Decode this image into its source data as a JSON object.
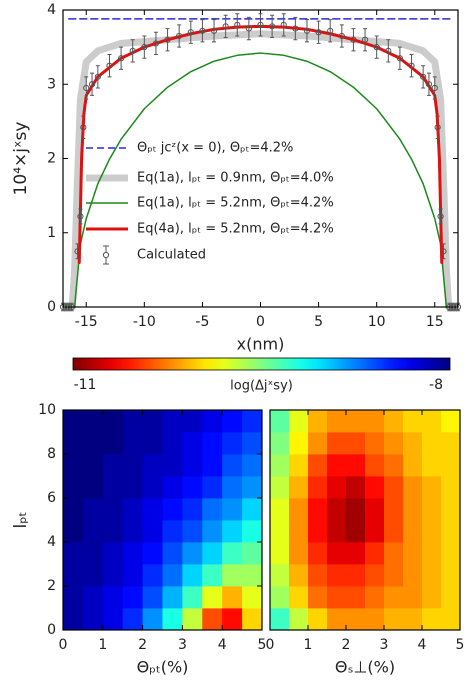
{
  "chart_data": [
    {
      "type": "line",
      "xlabel": "x(nm)",
      "ylabel": "10⁴×jˣsy",
      "xlim": [
        -17,
        17
      ],
      "ylim": [
        0,
        4
      ],
      "xticks": [
        -15,
        -10,
        -5,
        0,
        5,
        10,
        15
      ],
      "yticks": [
        0,
        1,
        2,
        3,
        4
      ],
      "series": [
        {
          "name": "Θₚₜ jcᶻ(x = 0),      Θₚₜ=4.2%",
          "color": "#2a2ad8",
          "dashed": true,
          "x": [
            -16.5,
            16.5
          ],
          "values": [
            3.88,
            3.88
          ]
        },
        {
          "name": "Eq(1a), lₚₜ = 0.9nm, Θₚₜ=4.0%",
          "color": "#cccccc",
          "x": [
            -16.2,
            -16,
            -15.8,
            -15.5,
            -15,
            -14,
            -12,
            -8,
            -4,
            0,
            4,
            8,
            12,
            14,
            15,
            15.5,
            15.8,
            16,
            16.2
          ],
          "values": [
            0,
            0.5,
            1.5,
            2.8,
            3.3,
            3.45,
            3.55,
            3.6,
            3.65,
            3.68,
            3.65,
            3.6,
            3.55,
            3.45,
            3.3,
            2.8,
            1.5,
            0.5,
            0
          ]
        },
        {
          "name": "Eq(1a), lₚₜ = 5.2nm, Θₚₜ=4.2%",
          "color": "#1a8a1a",
          "x": [
            -16,
            -15.5,
            -15,
            -14,
            -13,
            -12,
            -10,
            -8,
            -6,
            -4,
            -2,
            0,
            2,
            4,
            6,
            8,
            10,
            12,
            13,
            14,
            15,
            15.5,
            16
          ],
          "values": [
            0,
            0.85,
            1.19,
            1.66,
            1.99,
            2.26,
            2.67,
            2.96,
            3.17,
            3.31,
            3.39,
            3.42,
            3.39,
            3.31,
            3.17,
            2.96,
            2.67,
            2.26,
            1.99,
            1.66,
            1.19,
            0.85,
            0
          ]
        },
        {
          "name": "Eq(4a), lₚₜ = 5.2nm, Θₚₜ=4.2%",
          "color": "#e01010",
          "x": [
            -15.6,
            -15.4,
            -15.2,
            -15,
            -14,
            -12,
            -10,
            -8,
            -6,
            -4,
            -2,
            0,
            2,
            4,
            6,
            8,
            10,
            12,
            14,
            15,
            15.2,
            15.4,
            15.6
          ],
          "values": [
            0.6,
            2.0,
            2.6,
            2.85,
            3.1,
            3.35,
            3.5,
            3.6,
            3.68,
            3.74,
            3.77,
            3.78,
            3.77,
            3.74,
            3.68,
            3.6,
            3.5,
            3.35,
            3.1,
            2.85,
            2.6,
            2.0,
            0.6
          ]
        },
        {
          "name": "Calculated",
          "color": "#555555",
          "x": [
            -17,
            -16.75,
            -16.5,
            -16.25,
            -15.75,
            -15.5,
            -15.25,
            -15,
            -14.5,
            -14,
            -13,
            -12,
            -11,
            -10,
            -9,
            -8,
            -7,
            -6,
            -5,
            -4,
            -3,
            -2,
            -1,
            0,
            1,
            2,
            3,
            4,
            5,
            6,
            7,
            8,
            9,
            10,
            11,
            12,
            13,
            14,
            14.5,
            15,
            15.25,
            15.5,
            15.75,
            16.25,
            16.5,
            16.75,
            17
          ],
          "values": [
            0,
            0,
            0,
            0,
            0.75,
            1.22,
            2.42,
            2.95,
            3.0,
            3.1,
            3.25,
            3.35,
            3.45,
            3.5,
            3.55,
            3.6,
            3.65,
            3.7,
            3.72,
            3.72,
            3.78,
            3.8,
            3.75,
            3.8,
            3.78,
            3.8,
            3.75,
            3.72,
            3.7,
            3.72,
            3.65,
            3.6,
            3.6,
            3.5,
            3.45,
            3.35,
            3.25,
            3.1,
            3.0,
            2.95,
            2.42,
            1.22,
            0.75,
            0,
            0,
            0,
            0
          ],
          "errors": [
            0.05,
            0.05,
            0.05,
            0.05,
            0.1,
            0.1,
            0.15,
            0.15,
            0.15,
            0.15,
            0.15,
            0.15,
            0.15,
            0.15,
            0.15,
            0.15,
            0.15,
            0.15,
            0.15,
            0.15,
            0.15,
            0.15,
            0.15,
            0.15,
            0.15,
            0.15,
            0.15,
            0.15,
            0.15,
            0.15,
            0.15,
            0.15,
            0.15,
            0.15,
            0.15,
            0.15,
            0.15,
            0.15,
            0.15,
            0.15,
            0.15,
            0.1,
            0.1,
            0.05,
            0.05,
            0.05,
            0.05
          ]
        }
      ]
    },
    {
      "type": "colorbar",
      "label": "log(Δjˣsy)",
      "zlim": [
        -11,
        -8
      ],
      "zticks": [
        -11,
        -8
      ]
    },
    {
      "type": "heatmap",
      "xlabel": "Θₚₜ(%)",
      "ylabel": "lₚₜ",
      "xlim": [
        0,
        5
      ],
      "ylim": [
        0,
        10
      ],
      "xticks": [
        0,
        1,
        2,
        3,
        4,
        5
      ],
      "yticks": [
        0,
        2,
        4,
        6,
        8,
        10
      ],
      "x": [
        0.25,
        0.75,
        1.25,
        1.75,
        2.25,
        2.75,
        3.25,
        3.75,
        4.25,
        4.75
      ],
      "y": [
        0.5,
        1.5,
        2.5,
        3.5,
        4.5,
        5.5,
        6.5,
        7.5,
        8.5,
        9.5
      ],
      "z": [
        [
          -8.1,
          -8.2,
          -8.3,
          -8.5,
          -8.8,
          -9.2,
          -9.7,
          -10.4,
          -10.6,
          -10.0
        ],
        [
          -8.1,
          -8.2,
          -8.3,
          -8.4,
          -8.6,
          -8.9,
          -9.3,
          -9.8,
          -10.1,
          -9.8
        ],
        [
          -8.1,
          -8.1,
          -8.2,
          -8.3,
          -8.5,
          -8.7,
          -9.0,
          -9.3,
          -9.6,
          -9.6
        ],
        [
          -8.1,
          -8.1,
          -8.2,
          -8.3,
          -8.4,
          -8.6,
          -8.8,
          -9.0,
          -9.3,
          -9.4
        ],
        [
          -8.0,
          -8.1,
          -8.1,
          -8.2,
          -8.3,
          -8.5,
          -8.6,
          -8.8,
          -9.0,
          -9.2
        ],
        [
          -8.0,
          -8.1,
          -8.1,
          -8.2,
          -8.3,
          -8.4,
          -8.5,
          -8.7,
          -8.8,
          -9.0
        ],
        [
          -8.0,
          -8.0,
          -8.1,
          -8.1,
          -8.2,
          -8.3,
          -8.4,
          -8.5,
          -8.7,
          -8.8
        ],
        [
          -8.0,
          -8.0,
          -8.1,
          -8.1,
          -8.2,
          -8.2,
          -8.3,
          -8.4,
          -8.6,
          -8.7
        ],
        [
          -8.0,
          -8.0,
          -8.0,
          -8.1,
          -8.1,
          -8.2,
          -8.3,
          -8.4,
          -8.5,
          -8.6
        ],
        [
          -8.0,
          -8.0,
          -8.0,
          -8.1,
          -8.1,
          -8.2,
          -8.2,
          -8.3,
          -8.4,
          -8.5
        ]
      ]
    },
    {
      "type": "heatmap",
      "xlabel": "Θₛ⊥(%)",
      "xlim": [
        0,
        5
      ],
      "ylim": [
        0,
        10
      ],
      "xticks": [
        0,
        1,
        2,
        3,
        4,
        5
      ],
      "x": [
        0.25,
        0.75,
        1.25,
        1.75,
        2.25,
        2.75,
        3.25,
        3.75,
        4.25,
        4.75
      ],
      "y": [
        0.5,
        1.5,
        2.5,
        3.5,
        4.5,
        5.5,
        6.5,
        7.5,
        8.5,
        9.5
      ],
      "z": [
        [
          -9.3,
          -9.7,
          -10.0,
          -10.2,
          -10.2,
          -10.2,
          -10.1,
          -10.1,
          -10.0,
          -10.0
        ],
        [
          -9.6,
          -10.0,
          -10.3,
          -10.4,
          -10.4,
          -10.3,
          -10.2,
          -10.2,
          -10.1,
          -10.0
        ],
        [
          -9.7,
          -10.1,
          -10.4,
          -10.5,
          -10.5,
          -10.4,
          -10.3,
          -10.2,
          -10.1,
          -10.0
        ],
        [
          -9.8,
          -10.2,
          -10.5,
          -10.7,
          -10.7,
          -10.5,
          -10.3,
          -10.2,
          -10.1,
          -10.0
        ],
        [
          -9.8,
          -10.2,
          -10.6,
          -10.8,
          -10.9,
          -10.7,
          -10.4,
          -10.2,
          -10.1,
          -10.0
        ],
        [
          -9.8,
          -10.2,
          -10.6,
          -10.8,
          -10.9,
          -10.7,
          -10.4,
          -10.2,
          -10.1,
          -10.0
        ],
        [
          -9.7,
          -10.1,
          -10.5,
          -10.7,
          -10.8,
          -10.6,
          -10.4,
          -10.2,
          -10.1,
          -10.0
        ],
        [
          -9.6,
          -10.0,
          -10.4,
          -10.6,
          -10.6,
          -10.4,
          -10.3,
          -10.1,
          -10.0,
          -10.0
        ],
        [
          -9.5,
          -9.9,
          -10.2,
          -10.4,
          -10.4,
          -10.3,
          -10.2,
          -10.1,
          -10.0,
          -10.0
        ],
        [
          -9.4,
          -9.8,
          -10.1,
          -10.2,
          -10.2,
          -10.2,
          -10.1,
          -10.0,
          -10.0,
          -9.9
        ]
      ]
    }
  ]
}
